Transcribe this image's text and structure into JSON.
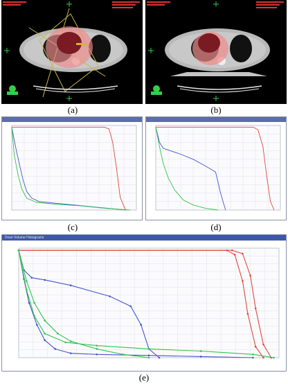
{
  "figure": {
    "captions": [
      "(a)",
      "(b)",
      "(c)",
      "(d)",
      "(e)"
    ],
    "panel_e_title": "Dose Volume Histograms",
    "colors": {
      "ptv": "#e0463a",
      "lung": "#4455cc",
      "cord": "#2fc24a",
      "ct_overlay": "#f08a8a"
    }
  },
  "chart_data": [
    {
      "type": "line",
      "panel": "c",
      "xlim": [
        0,
        1
      ],
      "ylim": [
        0,
        1
      ],
      "grid": true,
      "series": [
        {
          "color": "#e0463a",
          "x": [
            0,
            0.74,
            0.78,
            0.81,
            0.84,
            0.87,
            0.91
          ],
          "y": [
            0.98,
            0.98,
            0.96,
            0.8,
            0.5,
            0.15,
            0.01
          ]
        },
        {
          "color": "#4455cc",
          "x": [
            0.0,
            0.03,
            0.06,
            0.09,
            0.12,
            0.16,
            0.22,
            0.35,
            0.5,
            0.7,
            0.92
          ],
          "y": [
            0.98,
            0.75,
            0.55,
            0.36,
            0.22,
            0.14,
            0.1,
            0.08,
            0.06,
            0.03,
            0.0
          ]
        },
        {
          "color": "#2fc24a",
          "x": [
            0.0,
            0.02,
            0.05,
            0.08,
            0.12,
            0.2,
            0.35,
            0.55,
            0.75,
            0.95
          ],
          "y": [
            0.98,
            0.65,
            0.42,
            0.25,
            0.14,
            0.09,
            0.07,
            0.05,
            0.02,
            0.0
          ]
        }
      ]
    },
    {
      "type": "line",
      "panel": "d",
      "xlim": [
        0,
        1
      ],
      "ylim": [
        0,
        1
      ],
      "grid": true,
      "series": [
        {
          "color": "#e0463a",
          "x": [
            0,
            0.78,
            0.82,
            0.86,
            0.89,
            0.92,
            0.95
          ],
          "y": [
            0.98,
            0.98,
            0.95,
            0.75,
            0.4,
            0.1,
            0.0
          ]
        },
        {
          "color": "#4455cc",
          "x": [
            0.0,
            0.03,
            0.06,
            0.1,
            0.2,
            0.3,
            0.4,
            0.48,
            0.52,
            0.56
          ],
          "y": [
            0.98,
            0.8,
            0.73,
            0.71,
            0.66,
            0.6,
            0.52,
            0.45,
            0.2,
            0.0
          ]
        },
        {
          "color": "#2fc24a",
          "x": [
            0.0,
            0.03,
            0.06,
            0.1,
            0.15,
            0.22,
            0.3,
            0.4,
            0.5
          ],
          "y": [
            0.98,
            0.75,
            0.55,
            0.38,
            0.24,
            0.12,
            0.06,
            0.02,
            0.0
          ]
        }
      ]
    },
    {
      "type": "line",
      "panel": "e",
      "xlim": [
        0,
        1
      ],
      "ylim": [
        0,
        1
      ],
      "grid": true,
      "series": [
        {
          "color": "#e0463a",
          "marker": "dot",
          "x": [
            0.0,
            0.82,
            0.86,
            0.89,
            0.91,
            0.94,
            0.97
          ],
          "y": [
            0.98,
            0.98,
            0.95,
            0.75,
            0.45,
            0.12,
            0.0
          ]
        },
        {
          "color": "#e0463a",
          "marker": "dot",
          "x": [
            0.0,
            0.8,
            0.83,
            0.86,
            0.88,
            0.91,
            0.94
          ],
          "y": [
            0.98,
            0.98,
            0.94,
            0.7,
            0.4,
            0.1,
            0.0
          ]
        },
        {
          "color": "#4455cc",
          "marker": "dot",
          "x": [
            0.0,
            0.02,
            0.05,
            0.1,
            0.2,
            0.35,
            0.43,
            0.47,
            0.5,
            0.54
          ],
          "y": [
            0.98,
            0.8,
            0.73,
            0.71,
            0.66,
            0.56,
            0.47,
            0.3,
            0.08,
            0.0
          ]
        },
        {
          "color": "#4455cc",
          "marker": "dot",
          "x": [
            0.0,
            0.02,
            0.04,
            0.07,
            0.1,
            0.14,
            0.2,
            0.3,
            0.5,
            0.7,
            0.9
          ],
          "y": [
            0.98,
            0.72,
            0.5,
            0.3,
            0.16,
            0.08,
            0.04,
            0.03,
            0.02,
            0.01,
            0.0
          ]
        },
        {
          "color": "#2fc24a",
          "marker": "dot",
          "x": [
            0.0,
            0.03,
            0.06,
            0.1,
            0.15,
            0.2,
            0.3,
            0.4,
            0.5
          ],
          "y": [
            0.98,
            0.7,
            0.5,
            0.34,
            0.22,
            0.15,
            0.08,
            0.03,
            0.0
          ]
        },
        {
          "color": "#2fc24a",
          "marker": "dot",
          "x": [
            0.0,
            0.03,
            0.06,
            0.1,
            0.18,
            0.3,
            0.5,
            0.7,
            0.9,
            0.98
          ],
          "y": [
            0.98,
            0.62,
            0.38,
            0.22,
            0.14,
            0.11,
            0.08,
            0.06,
            0.03,
            0.0
          ]
        }
      ]
    }
  ]
}
